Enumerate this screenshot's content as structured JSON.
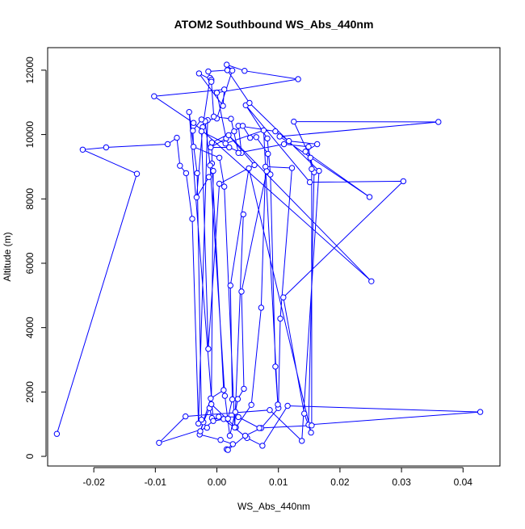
{
  "chart_data": {
    "type": "scatter",
    "title": "ATOM2 Southbound WS_Abs_440nm",
    "xlabel": "WS_Abs_440nm",
    "ylabel": "Altitude (m)",
    "xlim": [
      -0.0275,
      0.046
    ],
    "ylim": [
      -300,
      12700
    ],
    "x_ticks": [
      -0.02,
      -0.01,
      0.0,
      0.01,
      0.02,
      0.03,
      0.04
    ],
    "x_tick_labels": [
      "-0.02",
      "-0.01",
      "0.00",
      "0.01",
      "0.02",
      "0.03",
      "0.04"
    ],
    "y_ticks": [
      0,
      2000,
      4000,
      6000,
      8000,
      10000,
      12000
    ],
    "y_tick_labels": [
      "0",
      "2000",
      "4000",
      "6000",
      "8000",
      "10000",
      "12000"
    ],
    "grid": false,
    "legend": "none",
    "colors": {
      "series": "#0000ff",
      "axis": "#000000"
    },
    "series": [
      {
        "marker": "open-circle",
        "line": true,
        "points": [
          [
            -0.026,
            700
          ],
          [
            -0.013,
            8780
          ],
          [
            -0.0218,
            9530
          ],
          [
            -0.018,
            9600
          ],
          [
            -0.008,
            9700
          ],
          [
            -0.0065,
            9900
          ],
          [
            -0.006,
            9030
          ],
          [
            -0.005,
            8800
          ],
          [
            -0.004,
            7380
          ],
          [
            -0.003,
            1020
          ],
          [
            -0.0015,
            10450
          ],
          [
            0.0,
            10500
          ],
          [
            0.0025,
            11990
          ],
          [
            0.0016,
            12170
          ],
          [
            0.0045,
            11980
          ],
          [
            0.0132,
            11720
          ],
          [
            0.0,
            11300
          ],
          [
            0.0015,
            9880
          ],
          [
            -0.001,
            9600
          ],
          [
            0.002,
            9600
          ],
          [
            0.004,
            9430
          ],
          [
            0.0035,
            10270
          ],
          [
            0.0095,
            10100
          ],
          [
            0.0117,
            9800
          ],
          [
            0.0163,
            9700
          ],
          [
            0.0144,
            9470
          ],
          [
            0.0248,
            8060
          ],
          [
            0.0102,
            9940
          ],
          [
            0.036,
            10390
          ],
          [
            0.0125,
            10400
          ],
          [
            0.0152,
            9280
          ],
          [
            0.0158,
            8830
          ],
          [
            0.0149,
            980
          ],
          [
            0.0428,
            1380
          ],
          [
            0.0115,
            1570
          ],
          [
            0.0074,
            330
          ],
          [
            0.0049,
            570
          ],
          [
            0.0011,
            1160
          ],
          [
            -0.0008,
            1190
          ],
          [
            -0.0012,
            1500
          ],
          [
            -0.0022,
            1060
          ],
          [
            -0.0028,
            680
          ],
          [
            0.0006,
            510
          ],
          [
            0.0026,
            380
          ],
          [
            0.0016,
            220
          ],
          [
            0.0018,
            200
          ],
          [
            0.0046,
            640
          ],
          [
            0.0072,
            880
          ],
          [
            0.01,
            1500
          ],
          [
            0.0103,
            4280
          ],
          [
            0.0122,
            8960
          ],
          [
            0.0079,
            9000
          ],
          [
            0.0072,
            4620
          ],
          [
            0.0056,
            1600
          ],
          [
            0.0031,
            900
          ],
          [
            -0.0009,
            1620
          ],
          [
            -0.0006,
            8870
          ],
          [
            -0.0013,
            8680
          ],
          [
            -0.0033,
            8050
          ],
          [
            -0.0023,
            10230
          ],
          [
            -0.0011,
            11760
          ],
          [
            -0.0009,
            11700
          ],
          [
            -0.0029,
            11900
          ],
          [
            0.001,
            10890
          ],
          [
            0.0012,
            11400
          ],
          [
            -0.0102,
            11190
          ],
          [
            -0.0038,
            10360
          ],
          [
            0.0251,
            5440
          ],
          [
            0.0019,
            9980
          ],
          [
            0.0061,
            9050
          ],
          [
            0.0004,
            8470
          ],
          [
            -0.0014,
            3340
          ],
          [
            -0.0025,
            10100
          ],
          [
            0.0014,
            9720
          ],
          [
            0.0076,
            10130
          ],
          [
            0.0099,
            1610
          ],
          [
            0.0095,
            2790
          ],
          [
            0.0087,
            8760
          ],
          [
            0.0082,
            9880
          ],
          [
            0.0047,
            10910
          ],
          [
            0.0151,
            8520
          ],
          [
            0.0303,
            8550
          ],
          [
            0.0108,
            4940
          ],
          [
            0.0142,
            1330
          ],
          [
            0.0153,
            740
          ],
          [
            0.0052,
            8950
          ],
          [
            0.0022,
            5310
          ],
          [
            0.0025,
            1770
          ],
          [
            0.0018,
            1170
          ],
          [
            -0.0006,
            1100
          ],
          [
            -0.0045,
            10700
          ],
          [
            -0.0032,
            8800
          ],
          [
            -0.0025,
            1140
          ],
          [
            -0.0016,
            890
          ],
          [
            -0.0094,
            420
          ],
          [
            -0.0051,
            1240
          ],
          [
            0.0086,
            1440
          ],
          [
            0.0138,
            480
          ],
          [
            0.0166,
            8870
          ],
          [
            0.0053,
            10980
          ],
          [
            0.0017,
            12000
          ],
          [
            -0.0014,
            11960
          ],
          [
            -0.0009,
            11640
          ],
          [
            -0.0005,
            10560
          ],
          [
            0.0023,
            10490
          ],
          [
            0.0035,
            9430
          ],
          [
            0.0109,
            9700
          ],
          [
            0.0149,
            9620
          ],
          [
            0.0154,
            8930
          ],
          [
            0.0154,
            960
          ],
          [
            0.0069,
            880
          ],
          [
            0.0035,
            1220
          ],
          [
            0.0003,
            1230
          ],
          [
            -0.0027,
            780
          ],
          [
            -0.001,
            1800
          ],
          [
            0.0011,
            2060
          ],
          [
            -0.0008,
            9100
          ],
          [
            -0.0008,
            9750
          ],
          [
            0.0028,
            10100
          ],
          [
            0.0042,
            10270
          ],
          [
            0.0054,
            9900
          ],
          [
            0.0064,
            9920
          ],
          [
            0.0083,
            9400
          ],
          [
            0.0081,
            8860
          ],
          [
            0.004,
            5120
          ],
          [
            0.0044,
            2100
          ],
          [
            0.0034,
            1780
          ],
          [
            0.003,
            1380
          ],
          [
            0.0021,
            640
          ],
          [
            0.0013,
            1880
          ],
          [
            -0.0011,
            9040
          ],
          [
            -0.0019,
            10410
          ],
          [
            -0.0025,
            10470
          ],
          [
            -0.0039,
            10120
          ],
          [
            -0.0038,
            9620
          ],
          [
            0.0004,
            9280
          ],
          [
            0.0012,
            8380
          ],
          [
            0.0029,
            900
          ],
          [
            0.0043,
            7520
          ]
        ]
      }
    ]
  }
}
